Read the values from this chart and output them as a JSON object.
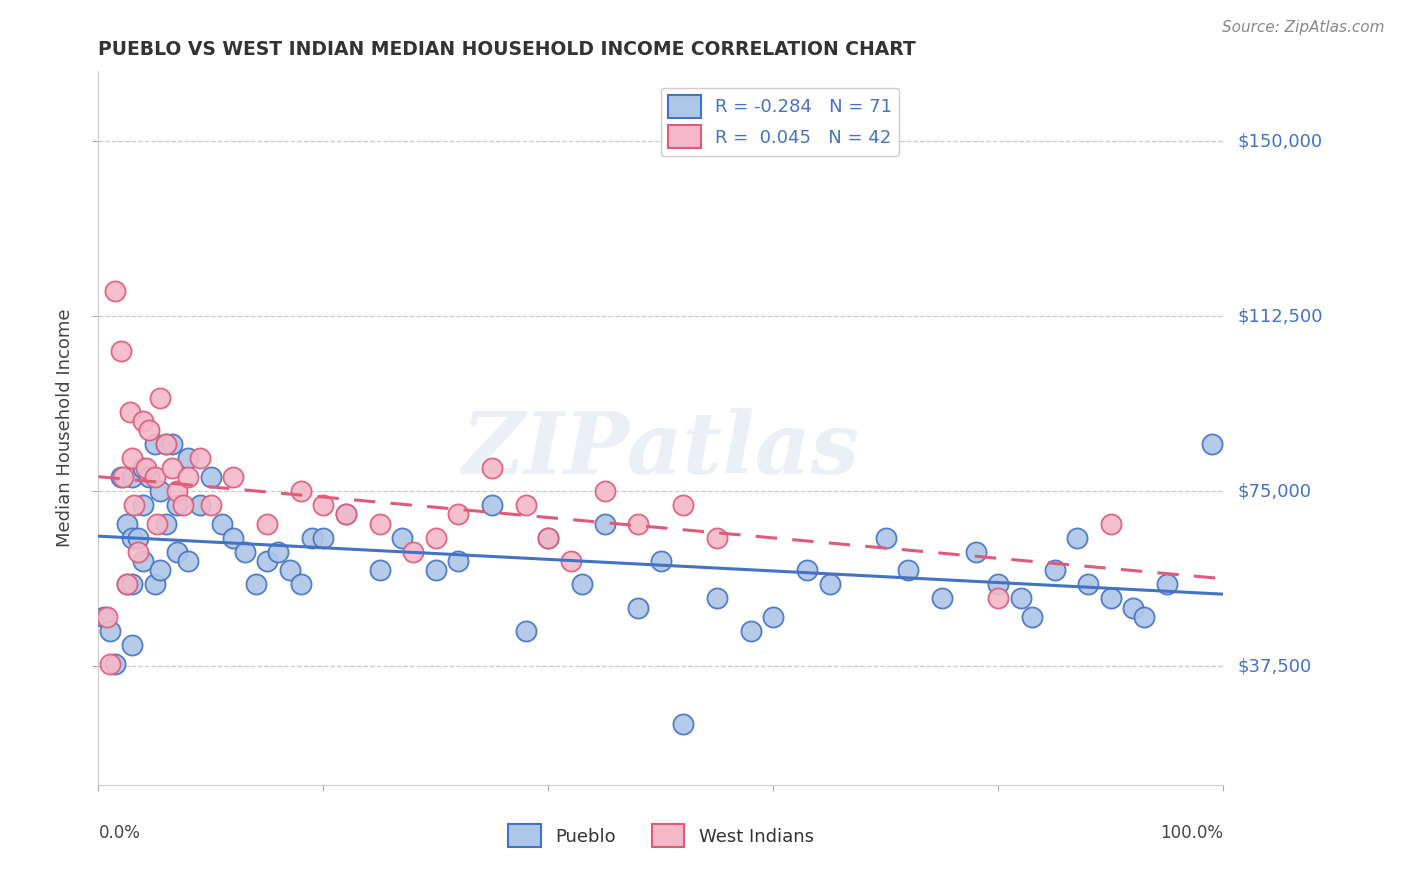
{
  "title": "PUEBLO VS WEST INDIAN MEDIAN HOUSEHOLD INCOME CORRELATION CHART",
  "source": "Source: ZipAtlas.com",
  "ylabel": "Median Household Income",
  "yticks": [
    37500,
    75000,
    112500,
    150000
  ],
  "ytick_labels": [
    "$37,500",
    "$75,000",
    "$112,500",
    "$150,000"
  ],
  "xmin": 0.0,
  "xmax": 1.0,
  "ymin": 12000,
  "ymax": 165000,
  "pueblo_R": -0.284,
  "pueblo_N": 71,
  "westindian_R": 0.045,
  "westindian_N": 42,
  "pueblo_dot_color": "#aec6e8",
  "pueblo_edge_color": "#4472c4",
  "pueblo_line_color": "#4472c4",
  "westindian_dot_color": "#f4b8c8",
  "westindian_edge_color": "#e05a7a",
  "westindian_line_color": "#e05a7a",
  "legend_pueblo_label": "Pueblo",
  "legend_westindian_label": "West Indians",
  "watermark": "ZIPatlas",
  "label_color": "#4472c4",
  "pueblo_x": [
    0.005,
    0.01,
    0.015,
    0.02,
    0.025,
    0.025,
    0.03,
    0.03,
    0.03,
    0.03,
    0.035,
    0.04,
    0.04,
    0.04,
    0.045,
    0.05,
    0.05,
    0.055,
    0.055,
    0.06,
    0.06,
    0.065,
    0.07,
    0.07,
    0.08,
    0.08,
    0.09,
    0.1,
    0.11,
    0.12,
    0.13,
    0.14,
    0.15,
    0.16,
    0.17,
    0.18,
    0.19,
    0.2,
    0.22,
    0.25,
    0.27,
    0.3,
    0.32,
    0.35,
    0.38,
    0.4,
    0.43,
    0.45,
    0.48,
    0.5,
    0.52,
    0.55,
    0.58,
    0.6,
    0.63,
    0.65,
    0.7,
    0.72,
    0.75,
    0.78,
    0.8,
    0.82,
    0.83,
    0.85,
    0.87,
    0.88,
    0.9,
    0.92,
    0.93,
    0.95,
    0.99
  ],
  "pueblo_y": [
    48000,
    45000,
    38000,
    78000,
    68000,
    55000,
    55000,
    42000,
    78000,
    65000,
    65000,
    80000,
    72000,
    60000,
    78000,
    85000,
    55000,
    58000,
    75000,
    68000,
    85000,
    85000,
    72000,
    62000,
    82000,
    60000,
    72000,
    78000,
    68000,
    65000,
    62000,
    55000,
    60000,
    62000,
    58000,
    55000,
    65000,
    65000,
    70000,
    58000,
    65000,
    58000,
    60000,
    72000,
    45000,
    65000,
    55000,
    68000,
    50000,
    60000,
    25000,
    52000,
    45000,
    48000,
    58000,
    55000,
    65000,
    58000,
    52000,
    62000,
    55000,
    52000,
    48000,
    58000,
    65000,
    55000,
    52000,
    50000,
    48000,
    55000,
    85000
  ],
  "westindian_x": [
    0.008,
    0.01,
    0.015,
    0.02,
    0.022,
    0.025,
    0.028,
    0.03,
    0.032,
    0.035,
    0.04,
    0.042,
    0.045,
    0.05,
    0.052,
    0.055,
    0.06,
    0.065,
    0.07,
    0.075,
    0.08,
    0.09,
    0.1,
    0.12,
    0.15,
    0.18,
    0.2,
    0.22,
    0.25,
    0.28,
    0.3,
    0.32,
    0.35,
    0.38,
    0.4,
    0.42,
    0.45,
    0.48,
    0.52,
    0.55,
    0.8,
    0.9
  ],
  "westindian_y": [
    48000,
    38000,
    118000,
    105000,
    78000,
    55000,
    92000,
    82000,
    72000,
    62000,
    90000,
    80000,
    88000,
    78000,
    68000,
    95000,
    85000,
    80000,
    75000,
    72000,
    78000,
    82000,
    72000,
    78000,
    68000,
    75000,
    72000,
    70000,
    68000,
    62000,
    65000,
    70000,
    80000,
    72000,
    65000,
    60000,
    75000,
    68000,
    72000,
    65000,
    52000,
    68000
  ]
}
